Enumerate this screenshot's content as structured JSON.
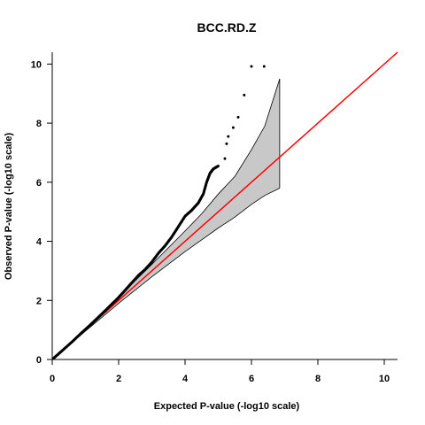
{
  "chart_data": {
    "type": "scatter",
    "title": "BCC.RD.Z",
    "xlabel": "Expected P-value (-log10 scale)",
    "ylabel": "Observed P-value (-log10 scale)",
    "xlim": [
      0,
      10.4
    ],
    "ylim": [
      0,
      10.4
    ],
    "x_ticks": [
      "0",
      "2",
      "4",
      "6",
      "8",
      "10"
    ],
    "y_ticks": [
      "0",
      "2",
      "4",
      "6",
      "8",
      "10"
    ],
    "grid": false,
    "point_color": "#000000",
    "reference_line": {
      "color": "#ff0000",
      "slope": 1,
      "intercept": 0
    },
    "confidence_band": {
      "fill": "#c8c8c8",
      "x": [
        0,
        1,
        2,
        3,
        4,
        4.5,
        5,
        5.5,
        6,
        6.4,
        6.85
      ],
      "upper": [
        0,
        1.06,
        2.12,
        3.22,
        4.35,
        4.93,
        5.6,
        6.2,
        7.1,
        7.9,
        9.5
      ],
      "lower": [
        0,
        0.96,
        1.9,
        2.8,
        3.65,
        4.05,
        4.45,
        4.82,
        5.25,
        5.55,
        5.8
      ]
    },
    "points": [
      [
        0.05,
        0.05
      ],
      [
        0.3,
        0.3
      ],
      [
        0.6,
        0.6
      ],
      [
        0.9,
        0.92
      ],
      [
        1.2,
        1.22
      ],
      [
        1.5,
        1.55
      ],
      [
        1.8,
        1.88
      ],
      [
        2.0,
        2.1
      ],
      [
        2.2,
        2.35
      ],
      [
        2.4,
        2.6
      ],
      [
        2.6,
        2.85
      ],
      [
        2.8,
        3.05
      ],
      [
        3.0,
        3.3
      ],
      [
        3.2,
        3.6
      ],
      [
        3.4,
        3.85
      ],
      [
        3.6,
        4.15
      ],
      [
        3.8,
        4.5
      ],
      [
        4.0,
        4.85
      ],
      [
        4.2,
        5.05
      ],
      [
        4.4,
        5.3
      ],
      [
        4.55,
        5.6
      ],
      [
        4.65,
        6.0
      ],
      [
        4.75,
        6.3
      ],
      [
        4.85,
        6.45
      ],
      [
        5.0,
        6.55
      ],
      [
        5.2,
        6.8
      ],
      [
        5.25,
        7.3
      ],
      [
        5.3,
        7.55
      ],
      [
        5.45,
        7.85
      ],
      [
        5.6,
        8.2
      ],
      [
        5.78,
        8.95
      ],
      [
        6.0,
        9.92
      ],
      [
        6.38,
        9.92
      ]
    ]
  }
}
